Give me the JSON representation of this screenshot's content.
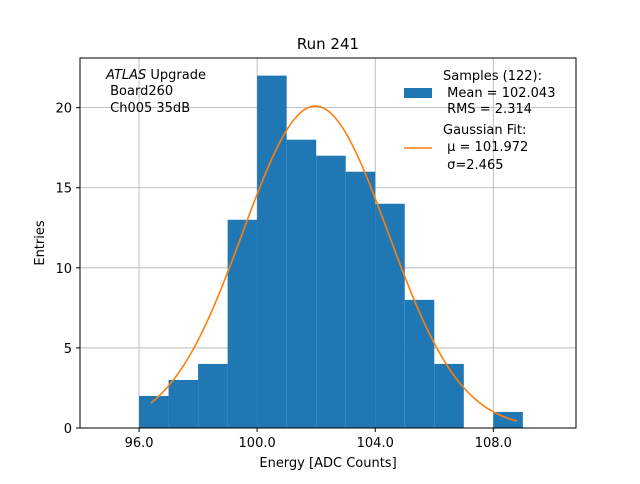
{
  "chart_data": {
    "type": "bar",
    "title": "Run 241",
    "xlabel": "Energy [ADC Counts]",
    "ylabel": "Entries",
    "xlim": [
      94.0,
      110.8
    ],
    "ylim": [
      0,
      23.1
    ],
    "xticks": [
      96.0,
      100.0,
      104.0,
      108.0
    ],
    "xtick_labels": [
      "96.0",
      "100.0",
      "104.0",
      "108.0"
    ],
    "yticks": [
      0,
      5,
      10,
      15,
      20
    ],
    "ytick_labels": [
      "0",
      "5",
      "10",
      "15",
      "20"
    ],
    "grid": true,
    "bar_color": "#1f77b4",
    "fit_color": "#ff7f0e",
    "bins": [
      {
        "left": 96.0,
        "right": 97.0,
        "count": 2
      },
      {
        "left": 97.0,
        "right": 98.0,
        "count": 3
      },
      {
        "left": 98.0,
        "right": 99.0,
        "count": 4
      },
      {
        "left": 99.0,
        "right": 100.0,
        "count": 13
      },
      {
        "left": 100.0,
        "right": 101.0,
        "count": 22
      },
      {
        "left": 101.0,
        "right": 102.0,
        "count": 18
      },
      {
        "left": 102.0,
        "right": 103.0,
        "count": 17
      },
      {
        "left": 103.0,
        "right": 104.0,
        "count": 16
      },
      {
        "left": 104.0,
        "right": 105.0,
        "count": 14
      },
      {
        "left": 105.0,
        "right": 106.0,
        "count": 8
      },
      {
        "left": 106.0,
        "right": 107.0,
        "count": 4
      },
      {
        "left": 107.0,
        "right": 108.0,
        "count": 0
      },
      {
        "left": 108.0,
        "right": 109.0,
        "count": 1
      }
    ],
    "fit": {
      "mu": 101.972,
      "sigma": 2.465,
      "amplitude": 20.1,
      "x_range": [
        96.4,
        108.8
      ]
    },
    "legend_position": "top-right",
    "legend": {
      "samples": [
        "Samples (122):",
        " Mean = 102.043",
        " RMS = 2.314"
      ],
      "fit": [
        "Gaussian Fit:",
        " μ = 101.972",
        " σ=2.465"
      ]
    },
    "annotation": {
      "italic": "ATLAS",
      "rest": " Upgrade",
      "line2": " Board260",
      "line3": " Ch005 35dB"
    }
  }
}
